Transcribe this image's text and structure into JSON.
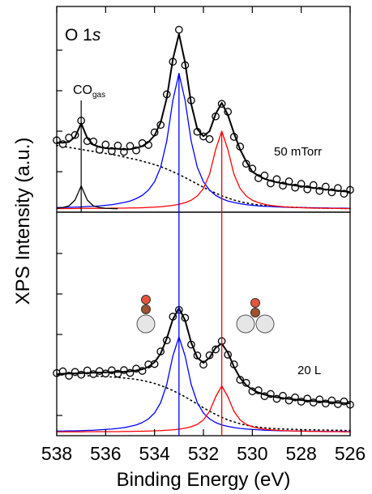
{
  "chart_data": [
    {
      "type": "line",
      "panel_label": {
        "text": "O 1",
        "italic": "s"
      },
      "co_label": {
        "text": "CO",
        "subscript": "gas",
        "x": 537
      },
      "condition": "50 mTorr",
      "ylabel": "XPS Intensity (a.u.)",
      "xlim": [
        538,
        526
      ],
      "ylim": [
        0,
        101.6
      ],
      "yticks": [
        20,
        40,
        60,
        80
      ],
      "x": [
        538,
        537.75,
        537.5,
        537.25,
        537,
        536.75,
        536.5,
        536.25,
        536,
        535.75,
        535.5,
        535.25,
        535,
        534.75,
        534.5,
        534.25,
        534,
        533.75,
        533.5,
        533.25,
        533,
        532.75,
        532.5,
        532.25,
        532,
        531.75,
        531.5,
        531.25,
        531,
        530.75,
        530.5,
        530.25,
        530,
        529.75,
        529.5,
        529.25,
        529,
        528.75,
        528.5,
        528.25,
        528,
        527.75,
        527.5,
        527.25,
        527,
        526.75,
        526.5,
        526.25,
        526
      ],
      "series": [
        {
          "style": "dotted",
          "color": "#000000",
          "values": [
            33,
            32.5,
            32,
            31.5,
            31,
            30.5,
            30,
            29.5,
            29,
            28.5,
            28,
            27.3,
            26.6,
            26,
            25.2,
            24.4,
            23.5,
            22.5,
            21.3,
            20,
            18.6,
            17.1,
            15.5,
            13.9,
            12.3,
            10.8,
            9.4,
            8.1,
            7,
            6,
            5.2,
            4.5,
            4,
            3.6,
            3.3,
            3.0,
            2.8,
            2.6,
            2.5,
            2.4,
            2.3,
            2.2,
            2.1,
            2.0,
            2.0,
            1.9,
            1.9,
            1.8,
            1.8
          ]
        },
        {
          "style": "line",
          "color": "#0000ff",
          "values": [
            2.3,
            2.3,
            2.4,
            2.5,
            2.6,
            2.8,
            2.9,
            3.1,
            3.4,
            3.7,
            4.2,
            4.8,
            5.5,
            6.7,
            8.3,
            10.9,
            15.0,
            22.2,
            35.1,
            55.2,
            68.6,
            55.2,
            35.1,
            22.2,
            15.0,
            10.9,
            8.3,
            6.7,
            5.5,
            4.8,
            4.2,
            3.7,
            3.4,
            3.1,
            2.9,
            2.8,
            2.6,
            2.5,
            2.4,
            2.3,
            2.3,
            2.2,
            2.2,
            2.1,
            2.1,
            2.0,
            2.0,
            2.0,
            1.9
          ]
        },
        {
          "style": "line",
          "color": "#ff0000",
          "values": [
            1.8,
            1.8,
            1.8,
            1.8,
            1.9,
            1.9,
            1.9,
            1.9,
            1.9,
            2.0,
            2.0,
            2.0,
            2.1,
            2.1,
            2.2,
            2.35,
            2.5,
            2.7,
            3.0,
            3.35,
            3.9,
            4.7,
            5.9,
            8.0,
            11.7,
            18.7,
            30.9,
            40,
            30.9,
            18.7,
            11.7,
            8.0,
            5.9,
            4.7,
            3.9,
            3.35,
            3.0,
            2.7,
            2.5,
            2.35,
            2.2,
            2.1,
            2.0,
            2.0,
            1.9,
            1.9,
            1.9,
            1.8,
            1.8
          ]
        },
        {
          "style": "line",
          "color": "#000000",
          "x": [
            538,
            537.75,
            537.5,
            537.25,
            537,
            536.75,
            536.5,
            536.25,
            536,
            535.75,
            535.5
          ],
          "values": [
            1.9,
            2.3,
            3.1,
            6.0,
            13,
            6.0,
            3.1,
            2.3,
            1.9,
            1.8,
            1.7
          ]
        },
        {
          "style": "markers",
          "color": "#000000",
          "values": [
            35.5,
            33.6,
            36.8,
            38.1,
            45.2,
            35.1,
            34.9,
            30.8,
            33.4,
            30.2,
            32.9,
            29.8,
            32.7,
            30.5,
            34.1,
            33.2,
            39.4,
            43.1,
            58.2,
            74.3,
            90.1,
            72.6,
            55.2,
            39.7,
            37.4,
            36.1,
            47.3,
            53.5,
            49.6,
            37.2,
            32.4,
            23.9,
            21.5,
            16.8,
            18.1,
            14.2,
            16.3,
            13.1,
            15.2,
            12.1,
            14.0,
            11.3,
            13.4,
            10.5,
            12.6,
            9.8,
            11.9,
            9.1,
            11.0
          ]
        },
        {
          "style": "fit",
          "color": "#000000",
          "values": [
            34.4,
            34.3,
            34.7,
            37.2,
            43.9,
            36.6,
            33.3,
            32.2,
            31.6,
            31.4,
            31.3,
            31.0,
            31.1,
            31.7,
            32.6,
            34.6,
            37.9,
            44.3,
            56.3,
            75.5,
            88.0,
            73.9,
            53.4,
            41.0,
            37.5,
            40,
            48.5,
            54,
            48,
            39,
            31,
            25,
            20,
            18,
            16.5,
            15.5,
            14.8,
            14.2,
            13.7,
            13.2,
            12.8,
            12.4,
            12,
            11.6,
            11.2,
            10.9,
            10.6,
            10.3,
            10
          ]
        }
      ],
      "vlines": [
        {
          "x": 533,
          "color": "#0000ff"
        },
        {
          "x": 531.25,
          "color": "#ff0000"
        }
      ]
    },
    {
      "type": "line",
      "condition": "20 L",
      "xlabel": "Binding Energy (eV)",
      "xlim": [
        538,
        526
      ],
      "xticks": [
        538,
        536,
        534,
        532,
        530,
        528,
        526
      ],
      "ylim": [
        0,
        110.4
      ],
      "yticks": [
        10,
        30,
        50,
        70,
        90
      ],
      "x": [
        538,
        537.75,
        537.5,
        537.25,
        537,
        536.75,
        536.5,
        536.25,
        536,
        535.75,
        535.5,
        535.25,
        535,
        534.75,
        534.5,
        534.25,
        534,
        533.75,
        533.5,
        533.25,
        533,
        532.75,
        532.5,
        532.25,
        532,
        531.75,
        531.5,
        531.25,
        531,
        530.75,
        530.5,
        530.25,
        530,
        529.75,
        529.5,
        529.25,
        529,
        528.75,
        528.5,
        528.25,
        528,
        527.75,
        527.5,
        527.25,
        527,
        526.75,
        526.5,
        526.25,
        526
      ],
      "series": [
        {
          "style": "dotted",
          "color": "#000000",
          "values": [
            30,
            30,
            29.9,
            29.8,
            29.7,
            29.6,
            29.5,
            29.4,
            29.2,
            29,
            28.8,
            28.5,
            28.2,
            27.8,
            27.3,
            26.6,
            25.8,
            24.8,
            23.6,
            22.3,
            20.8,
            19.2,
            17.4,
            15.6,
            13.8,
            12.1,
            10.5,
            9.1,
            7.8,
            6.8,
            5.9,
            5.2,
            4.6,
            4.2,
            3.9,
            3.6,
            3.4,
            3.3,
            3.2,
            3.1,
            3.0,
            2.9,
            2.9,
            2.8,
            2.8,
            2.7,
            2.7,
            2.6,
            2.6
          ]
        },
        {
          "style": "line",
          "color": "#0000ff",
          "values": [
            2.3,
            2.3,
            2.4,
            2.4,
            2.5,
            2.6,
            2.7,
            2.9,
            3.1,
            3.3,
            3.6,
            4.0,
            4.6,
            5.3,
            6.5,
            8.3,
            11.2,
            16.3,
            25.3,
            39.4,
            48.8,
            39.4,
            25.3,
            16.3,
            11.2,
            8.3,
            6.5,
            5.3,
            4.6,
            4.0,
            3.6,
            3.3,
            3.1,
            2.9,
            2.7,
            2.6,
            2.5,
            2.4,
            2.4,
            2.3,
            2.3,
            2.2,
            2.2,
            2.2,
            2.1,
            2.1,
            2.1,
            2.1,
            2.0
          ]
        },
        {
          "style": "line",
          "color": "#ff0000",
          "values": [
            1.9,
            1.9,
            1.9,
            1.9,
            1.9,
            2.0,
            2.0,
            2.0,
            2.0,
            2.0,
            2.0,
            2.1,
            2.1,
            2.2,
            2.2,
            2.3,
            2.4,
            2.5,
            2.7,
            2.9,
            3.2,
            3.7,
            4.4,
            5.6,
            7.8,
            12.0,
            19.2,
            24.6,
            19.2,
            12.0,
            7.8,
            5.6,
            4.4,
            3.7,
            3.2,
            2.9,
            2.7,
            2.5,
            2.4,
            2.3,
            2.2,
            2.2,
            2.1,
            2.1,
            2.0,
            2.0,
            2.0,
            1.9,
            1.9
          ]
        },
        {
          "style": "markers",
          "color": "#000000",
          "values": [
            30.9,
            31.8,
            29.6,
            31.5,
            30.1,
            32.2,
            30.4,
            31.9,
            30.7,
            32.3,
            30.6,
            32.4,
            31.0,
            33.1,
            32.0,
            35.2,
            35.4,
            41.6,
            47.1,
            58.8,
            62.1,
            58.2,
            45.0,
            39.6,
            35.1,
            39.7,
            42.6,
            46.7,
            40.0,
            35.2,
            27.6,
            26.1,
            21.9,
            22.4,
            19.5,
            20.6,
            18.2,
            19.7,
            17.4,
            18.9,
            16.8,
            18.3,
            16.4,
            17.9,
            15.9,
            17.4,
            15.6,
            16.9,
            15.3
          ]
        },
        {
          "style": "fit",
          "color": "#000000",
          "values": [
            30.5,
            30.6,
            30.7,
            30.8,
            30.9,
            31,
            31.1,
            31.2,
            31.3,
            31.4,
            31.5,
            31.6,
            31.8,
            32.2,
            32.8,
            34,
            36.3,
            40.5,
            48,
            57.5,
            63,
            57,
            46,
            38.5,
            36,
            38.5,
            43.5,
            45.5,
            41,
            34,
            28.5,
            25,
            22.8,
            21.3,
            20.3,
            19.6,
            19,
            18.6,
            18.2,
            17.9,
            17.6,
            17.3,
            17.1,
            16.9,
            16.7,
            16.5,
            16.3,
            16.1,
            16
          ]
        }
      ]
    }
  ]
}
